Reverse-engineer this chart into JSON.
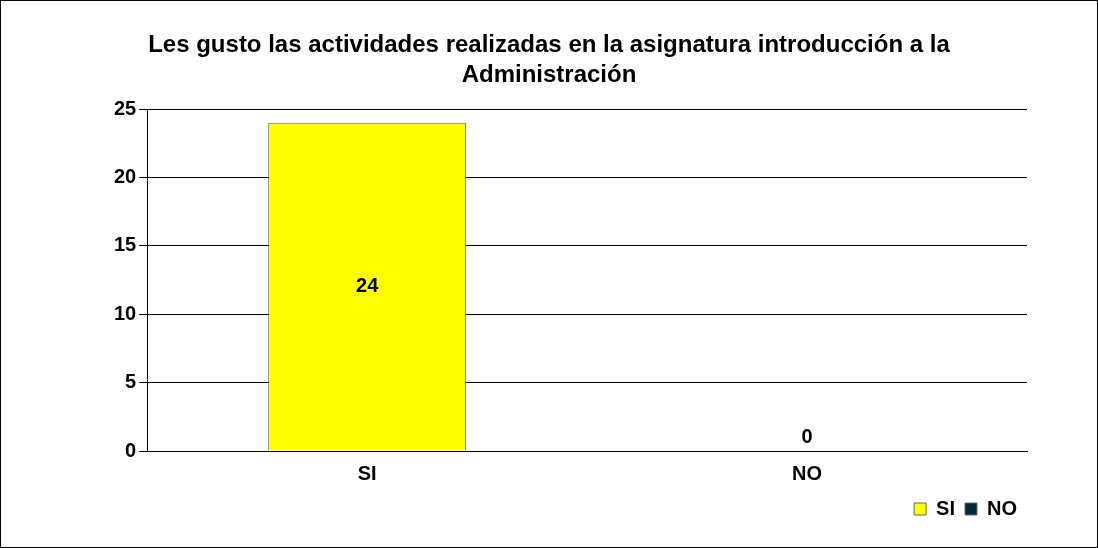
{
  "chart_data": {
    "type": "bar",
    "title": "Les gusto las actividades realizadas en la asignatura introducción a la Administración",
    "categories": [
      "SI",
      "NO"
    ],
    "series": [
      {
        "name": "SI",
        "color": "#ffff00",
        "values": [
          24,
          null
        ]
      },
      {
        "name": "NO",
        "color": "#002b3a",
        "values": [
          null,
          0
        ]
      }
    ],
    "ylim": [
      0,
      25
    ],
    "yticks": [
      0,
      5,
      10,
      15,
      20,
      25
    ],
    "grid": "y",
    "legend": "bottom right",
    "data_labels": true
  }
}
